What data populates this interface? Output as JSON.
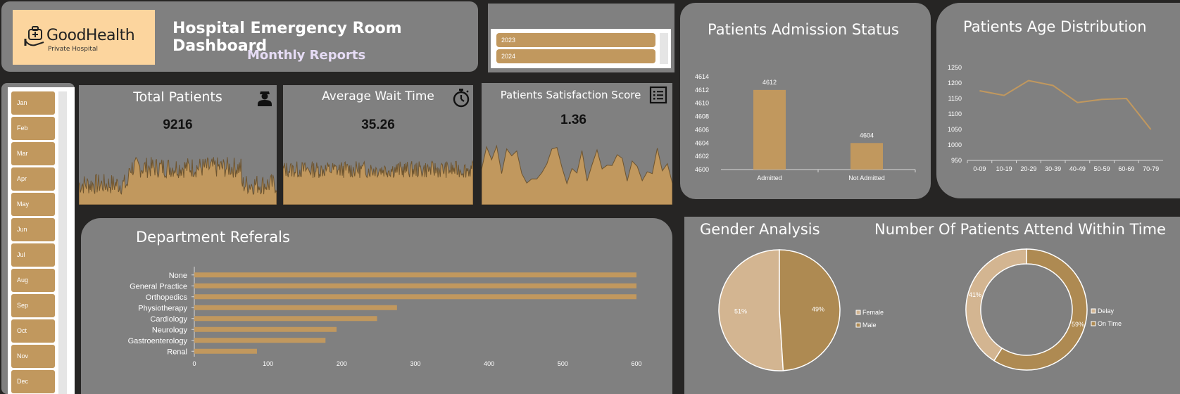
{
  "header": {
    "logo_name": "GoodHealth",
    "logo_sub": "Private Hospital",
    "title": "Hospital Emergency Room Dashboard",
    "subtitle": "Monthly Reports"
  },
  "year_slicer": {
    "items": [
      "2023",
      "2024"
    ]
  },
  "month_slicer": {
    "items": [
      "Jan",
      "Feb",
      "Mar",
      "Apr",
      "May",
      "Jun",
      "Jul",
      "Aug",
      "Sep",
      "Oct",
      "Nov",
      "Dec"
    ]
  },
  "kpis": {
    "total_patients": {
      "title": "Total  Patients",
      "value": "9216",
      "icon": "person-icon"
    },
    "avg_wait": {
      "title": "Average Wait Time",
      "value": "35.26",
      "icon": "stopwatch-icon"
    },
    "satisfaction": {
      "title": "Patients Satisfaction Score",
      "value": "1.36",
      "icon": "checklist-icon"
    }
  },
  "panels": {
    "admission_title": "Patients Admission Status",
    "age_title": "Patients Age Distribution",
    "dept_title": "Department Referals",
    "gender_title": "Gender Analysis",
    "attend_title": "Number Of Patients Attend Within Time"
  },
  "colors": {
    "accent": "#c1985e",
    "accent_dark": "#ae8a52",
    "light": "#d3b591",
    "panel": "#808080",
    "background": "#262524"
  },
  "chart_data": [
    {
      "type": "bar",
      "title": "Patients Admission Status",
      "categories": [
        "Admitted",
        "Not Admitted"
      ],
      "values": [
        4612,
        4604
      ],
      "ylim": [
        4600,
        4614
      ],
      "yticks": [
        4600,
        4602,
        4604,
        4606,
        4608,
        4610,
        4612,
        4614
      ],
      "grid": false
    },
    {
      "type": "line",
      "title": "Patients Age Distribution",
      "categories": [
        "0-09",
        "10-19",
        "20-29",
        "30-39",
        "40-49",
        "50-59",
        "60-69",
        "70-79"
      ],
      "values": [
        1175,
        1160,
        1208,
        1192,
        1137,
        1147,
        1150,
        1050
      ],
      "ylim": [
        950,
        1250
      ],
      "yticks": [
        950,
        1000,
        1050,
        1100,
        1150,
        1200,
        1250
      ],
      "grid": false
    },
    {
      "type": "bar",
      "orientation": "horizontal",
      "title": "Department Referals",
      "categories": [
        "None",
        "General Practice",
        "Orthopedics",
        "Physiotherapy",
        "Cardiology",
        "Neurology",
        "Gastroenterology",
        "Renal"
      ],
      "values": [
        600,
        600,
        600,
        275,
        248,
        193,
        178,
        85
      ],
      "xlim": [
        0,
        600
      ],
      "xticks": [
        0,
        100,
        200,
        300,
        400,
        500,
        600
      ],
      "grid": false
    },
    {
      "type": "pie",
      "title": "Gender Analysis",
      "categories": [
        "Female",
        "Male"
      ],
      "values": [
        51,
        49
      ],
      "labels": [
        "51%",
        "49%"
      ],
      "colors": [
        "#d3b591",
        "#ae8a52"
      ],
      "legend": "right"
    },
    {
      "type": "pie",
      "style": "donut",
      "title": "Number Of Patients Attend Within Time",
      "categories": [
        "Delay",
        "On Time"
      ],
      "values": [
        41,
        59
      ],
      "labels": [
        "41%",
        "59%"
      ],
      "colors": [
        "#d3b591",
        "#ae8a52"
      ],
      "legend": "right"
    }
  ]
}
